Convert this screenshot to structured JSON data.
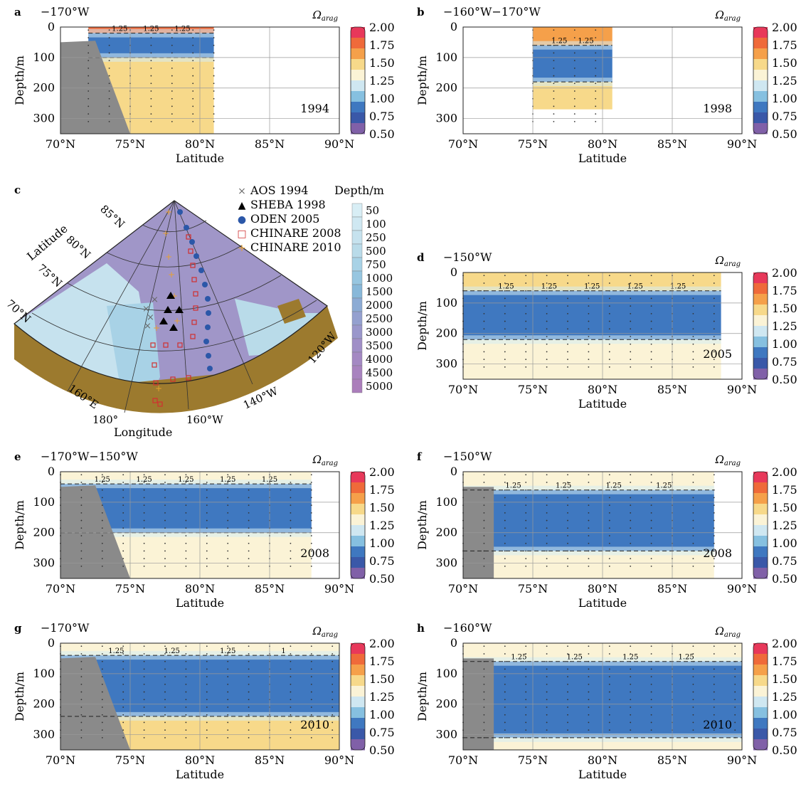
{
  "colorbar": {
    "ticks": [
      "2.00",
      "1.75",
      "1.50",
      "1.25",
      "1.00",
      "0.75",
      "0.50"
    ],
    "colors": [
      "#e8385a",
      "#ef6a3a",
      "#f5a04a",
      "#f7d98a",
      "#fbf3d6",
      "#cfe7f1",
      "#86c0e0",
      "#3f78c0",
      "#3a58a8",
      "#8060a8"
    ]
  },
  "map": {
    "panel_letter": "c",
    "xlabel": "Longitude",
    "ylabel": "Latitude",
    "lat_labels": [
      "85°N",
      "80°N",
      "75°N",
      "70°N"
    ],
    "lon_labels": [
      "160°E",
      "180°",
      "160°W",
      "140°W",
      "120°W"
    ],
    "legend": [
      {
        "symbol": "×",
        "label": "AOS 1994",
        "color": "#666666"
      },
      {
        "symbol": "▲",
        "label": "SHEBA 1998",
        "color": "#000000"
      },
      {
        "symbol": "●",
        "label": "ODEN 2005",
        "color": "#2b57a8"
      },
      {
        "symbol": "□",
        "label": "CHINARE 2008",
        "color": "#d03030"
      },
      {
        "symbol": "+",
        "label": "CHINARE 2010",
        "color": "#e8a030"
      }
    ],
    "depth_title": "Depth/m",
    "depth_ticks": [
      "50",
      "100",
      "250",
      "500",
      "750",
      "1000",
      "1500",
      "2000",
      "2500",
      "3000",
      "3500",
      "4000",
      "4500",
      "5000"
    ]
  },
  "chart_data": [
    {
      "type": "heatmap",
      "panel_letter": "a",
      "title": "−170°W",
      "year": "1994",
      "xlabel": "Latitude",
      "ylabel": "Depth/m",
      "x_ticks": [
        "70°N",
        "75°N",
        "80°N",
        "85°N",
        "90°N"
      ],
      "y_ticks": [
        "0",
        "100",
        "200",
        "300"
      ],
      "xlim": [
        70,
        90
      ],
      "ylim": [
        350,
        0
      ],
      "colorbar_label": "Ω",
      "colorbar_sub": "arag",
      "contour_labels": [
        "1.25",
        "1.25",
        "1.25"
      ],
      "coverage": [
        72,
        81
      ],
      "layers": [
        {
          "depth": [
            0,
            20
          ],
          "value": 1.8
        },
        {
          "depth": [
            20,
            100
          ],
          "value": 0.9
        },
        {
          "depth": [
            100,
            350
          ],
          "value": 1.55
        }
      ]
    },
    {
      "type": "heatmap",
      "panel_letter": "b",
      "title": "−160°W−170°W",
      "year": "1998",
      "xlabel": "Latitude",
      "ylabel": "Depth/m",
      "x_ticks": [
        "70°N",
        "75°N",
        "80°N",
        "85°N",
        "90°N"
      ],
      "y_ticks": [
        "0",
        "100",
        "200",
        "300"
      ],
      "xlim": [
        70,
        90
      ],
      "ylim": [
        350,
        0
      ],
      "colorbar_label": "Ω",
      "colorbar_sub": "arag",
      "contour_labels": [
        "1.25",
        "1.25"
      ],
      "coverage": [
        75,
        80.7
      ],
      "layers": [
        {
          "depth": [
            0,
            60
          ],
          "value": 1.6
        },
        {
          "depth": [
            60,
            180
          ],
          "value": 0.85
        },
        {
          "depth": [
            180,
            270
          ],
          "value": 1.5
        }
      ]
    },
    {
      "type": "heatmap",
      "panel_letter": "d",
      "title": "−150°W",
      "year": "2005",
      "xlabel": "Latitude",
      "ylabel": "Depth/m",
      "x_ticks": [
        "70°N",
        "75°N",
        "80°N",
        "85°N",
        "90°N"
      ],
      "y_ticks": [
        "0",
        "100",
        "200",
        "300"
      ],
      "xlim": [
        70,
        90
      ],
      "ylim": [
        350,
        0
      ],
      "colorbar_label": "Ω",
      "colorbar_sub": "arag",
      "contour_labels": [
        "1.25",
        "1.25",
        "1.25",
        "1.25",
        "1.25"
      ],
      "coverage": [
        70,
        88.5
      ],
      "layers": [
        {
          "depth": [
            0,
            60
          ],
          "value": 1.5
        },
        {
          "depth": [
            60,
            220
          ],
          "value": 0.8
        },
        {
          "depth": [
            220,
            350
          ],
          "value": 1.4
        }
      ]
    },
    {
      "type": "heatmap",
      "panel_letter": "e",
      "title": "−170°W−150°W",
      "year": "2008",
      "xlabel": "Latitude",
      "ylabel": "Depth/m",
      "x_ticks": [
        "70°N",
        "75°N",
        "80°N",
        "85°N",
        "90°N"
      ],
      "y_ticks": [
        "0",
        "100",
        "200",
        "300"
      ],
      "xlim": [
        70,
        90
      ],
      "ylim": [
        350,
        0
      ],
      "colorbar_label": "Ω",
      "colorbar_sub": "arag",
      "contour_labels": [
        "1.25",
        "1.25",
        "1.25",
        "1.25",
        "1.25"
      ],
      "coverage": [
        70,
        88
      ],
      "layers": [
        {
          "depth": [
            0,
            40
          ],
          "value": 1.35
        },
        {
          "depth": [
            40,
            200
          ],
          "value": 0.85
        },
        {
          "depth": [
            200,
            350
          ],
          "value": 1.3
        }
      ]
    },
    {
      "type": "heatmap",
      "panel_letter": "f",
      "title": "−150°W",
      "year": "2008",
      "xlabel": "Latitude",
      "ylabel": "Depth/m",
      "x_ticks": [
        "70°N",
        "75°N",
        "80°N",
        "85°N",
        "90°N"
      ],
      "y_ticks": [
        "0",
        "100",
        "200",
        "300"
      ],
      "xlim": [
        70,
        90
      ],
      "ylim": [
        350,
        0
      ],
      "colorbar_label": "Ω",
      "colorbar_sub": "arag",
      "contour_labels": [
        "1.25",
        "1.25",
        "1.25",
        "1.25"
      ],
      "coverage": [
        70,
        88
      ],
      "layers": [
        {
          "depth": [
            0,
            60
          ],
          "value": 1.4
        },
        {
          "depth": [
            60,
            260
          ],
          "value": 0.8
        },
        {
          "depth": [
            260,
            350
          ],
          "value": 1.35
        }
      ]
    },
    {
      "type": "heatmap",
      "panel_letter": "g",
      "title": "−170°W",
      "year": "2010",
      "xlabel": "Latitude",
      "ylabel": "Depth/m",
      "x_ticks": [
        "70°N",
        "75°N",
        "80°N",
        "85°N",
        "90°N"
      ],
      "y_ticks": [
        "0",
        "100",
        "200",
        "300"
      ],
      "xlim": [
        70,
        90
      ],
      "ylim": [
        350,
        0
      ],
      "colorbar_label": "Ω",
      "colorbar_sub": "arag",
      "contour_labels": [
        "1.25",
        "1.25",
        "1.25",
        "1"
      ],
      "coverage": [
        70,
        90
      ],
      "layers": [
        {
          "depth": [
            0,
            40
          ],
          "value": 1.4
        },
        {
          "depth": [
            40,
            240
          ],
          "value": 0.8
        },
        {
          "depth": [
            240,
            350
          ],
          "value": 1.45
        }
      ]
    },
    {
      "type": "heatmap",
      "panel_letter": "h",
      "title": "−160°W",
      "year": "2010",
      "xlabel": "Latitude",
      "ylabel": "Depth/m",
      "x_ticks": [
        "70°N",
        "75°N",
        "80°N",
        "85°N",
        "90°N"
      ],
      "y_ticks": [
        "0",
        "100",
        "200",
        "300"
      ],
      "xlim": [
        70,
        90
      ],
      "ylim": [
        350,
        0
      ],
      "colorbar_label": "Ω",
      "colorbar_sub": "arag",
      "contour_labels": [
        "1.25",
        "1.25",
        "1.25",
        "1.25"
      ],
      "coverage": [
        70,
        90
      ],
      "layers": [
        {
          "depth": [
            0,
            60
          ],
          "value": 1.4
        },
        {
          "depth": [
            60,
            310
          ],
          "value": 0.8
        },
        {
          "depth": [
            310,
            350
          ],
          "value": 1.4
        }
      ]
    }
  ]
}
